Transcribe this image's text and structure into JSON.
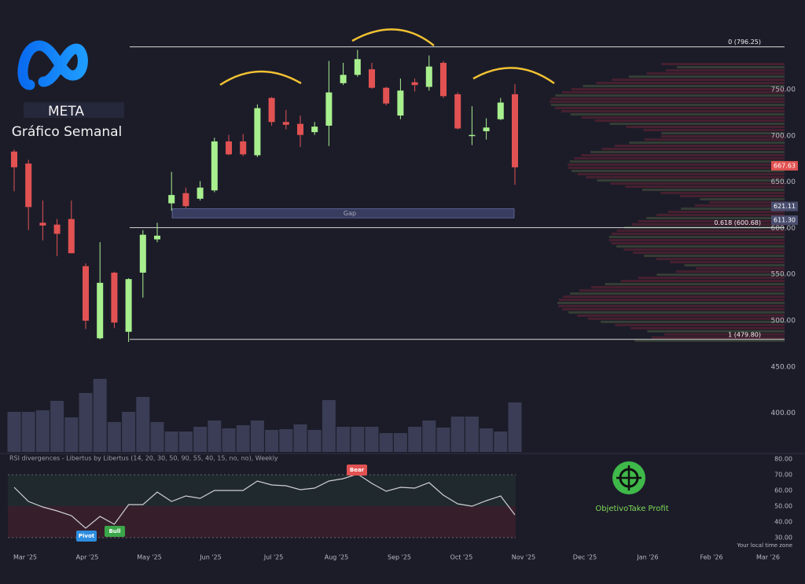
{
  "header": {
    "ticker": "META",
    "subtitle": "Gráfico Semanal"
  },
  "chart_data": [
    {
      "type": "candlestick",
      "open": [
        683,
        670,
        606,
        604,
        610,
        559,
        481,
        552,
        488,
        552,
        588,
        627,
        638,
        632,
        641,
        694,
        694,
        679,
        741,
        715,
        713,
        704,
        711,
        757,
        766,
        772,
        752,
        722,
        758,
        753,
        779,
        745,
        700,
        705,
        718,
        745
      ],
      "high": [
        685,
        674,
        630,
        610,
        630,
        562,
        585,
        553,
        546,
        598,
        606,
        661,
        644,
        651,
        698,
        701,
        702,
        734,
        742,
        728,
        722,
        715,
        781,
        779,
        793,
        779,
        753,
        762,
        762,
        787,
        781,
        747,
        732,
        719,
        741,
        756
      ],
      "low": [
        640,
        598,
        587,
        570,
        573,
        491,
        479.8,
        492,
        477,
        525,
        585,
        619,
        622,
        630,
        639,
        679,
        678,
        677,
        711,
        707,
        688,
        701,
        689,
        755,
        764,
        751,
        733,
        718,
        748,
        749,
        741,
        707,
        690,
        696,
        717,
        647
      ],
      "close": [
        666,
        623,
        603,
        594,
        573,
        500,
        541,
        498,
        545,
        593,
        592,
        636,
        624,
        644,
        694,
        680,
        680,
        730,
        715,
        712,
        701,
        710,
        747,
        766,
        783,
        752,
        735,
        749,
        755,
        775,
        743,
        708,
        701,
        709,
        736,
        666
      ],
      "volume": [
        51,
        51,
        53,
        65,
        44,
        75,
        93,
        38,
        51,
        70,
        38,
        26,
        26,
        32,
        40,
        30,
        34,
        40,
        28,
        29,
        35,
        28,
        66,
        32,
        32,
        32,
        24,
        24,
        32,
        40,
        31,
        45,
        45,
        30,
        26,
        63
      ],
      "up_color": "#a8f08e",
      "down_color": "#e25252",
      "volume_color": "#3a3d55",
      "ylim": [
        358,
        847
      ],
      "yticks": [
        {
          "value": 400,
          "label": "400.00"
        },
        {
          "value": 450,
          "label": "450.00"
        },
        {
          "value": 500,
          "label": "500.00"
        },
        {
          "value": 550,
          "label": "550.00"
        },
        {
          "value": 600,
          "label": "600.00"
        },
        {
          "value": 650,
          "label": "650.00"
        },
        {
          "value": 700,
          "label": "700.00"
        },
        {
          "value": 750,
          "label": "750.00"
        }
      ],
      "fib_levels": [
        {
          "value": 796.25,
          "label": "0 (796.25)"
        },
        {
          "value": 600.68,
          "label": "0.618 (600.68)"
        },
        {
          "value": 479.8,
          "label": "1 (479.80)"
        }
      ],
      "price_tags": [
        {
          "value": 667.63,
          "label": "667.63",
          "color": "#e25252"
        },
        {
          "value": 621.11,
          "label": "621.11",
          "color": "#4a4e6e"
        },
        {
          "value": 611.3,
          "label": "611.30",
          "color": "#4a4e6e"
        }
      ],
      "gap_label": "Gap",
      "x_labels": [
        "Mar '25",
        "Apr '25",
        "May '25",
        "Jun '25",
        "Jul '25",
        "Aug '25",
        "Sep '25",
        "Oct '25",
        "Nov '25",
        "Dec '25",
        "Jan '26",
        "Feb '26",
        "Mar '26"
      ]
    },
    {
      "type": "line",
      "title": "RSI divergences - Libertus by Libertus (14, 20, 30, 50, 90, 55, 40, 15, no, no), Weekly",
      "values": [
        62,
        53,
        49.5,
        47,
        44,
        36,
        43.5,
        38.5,
        51,
        51,
        59,
        53,
        56.5,
        55,
        60,
        60,
        60,
        66,
        63.5,
        63,
        60.5,
        61.5,
        66,
        67.5,
        70.5,
        64.5,
        59.5,
        62,
        61.5,
        65,
        57,
        51.5,
        50,
        53.5,
        56.5,
        44.5
      ],
      "color": "#cfcfd6",
      "ylim": [
        26,
        83
      ],
      "yticks": [
        {
          "value": 30,
          "label": "30.00"
        },
        {
          "value": 40,
          "label": "40.00"
        },
        {
          "value": 50,
          "label": "50.00"
        },
        {
          "value": 60,
          "label": "60.00"
        },
        {
          "value": 70,
          "label": "70.00"
        },
        {
          "value": 80,
          "label": "80.00"
        }
      ],
      "signals": [
        {
          "label": "Pivot",
          "color": "#2d8de0"
        },
        {
          "label": "Bull",
          "color": "#3aa64a"
        },
        {
          "label": "Bear",
          "color": "#e25252"
        }
      ]
    }
  ],
  "footer": {
    "brand": "ObjetivoTake Profit",
    "timezone": "Your local time zone"
  }
}
